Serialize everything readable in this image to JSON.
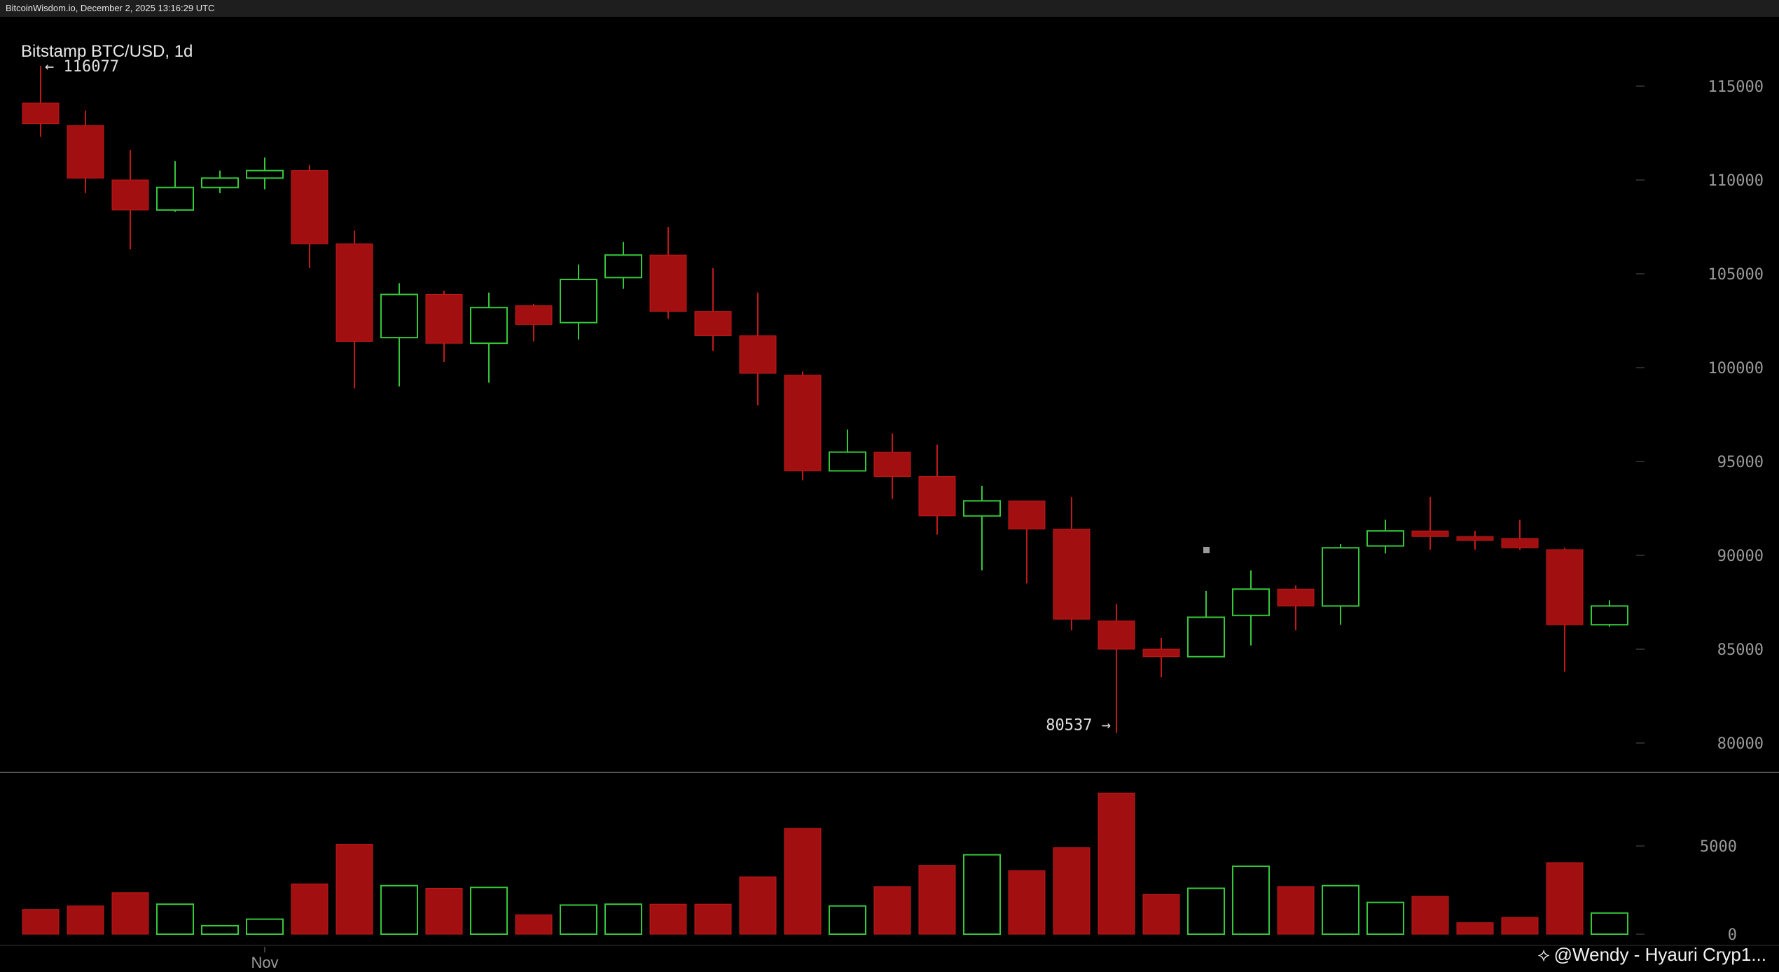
{
  "header": {
    "source_line": "BitcoinWisdom.io, December 2, 2025 13:16:29 UTC"
  },
  "watermark": {
    "text": "@Wendy - Hyauri Cryp1...",
    "icon": "binance-diamond-icon"
  },
  "colors": {
    "up": "#35c83a",
    "down": "#a10f10",
    "down_edge": "#c1191a",
    "axis_text": "#9a9a9a",
    "label_text": "#e0e0e0",
    "divider": "#555555"
  },
  "chart_data": {
    "type": "candlestick",
    "title": "Bitstamp BTC/USD, 1d",
    "price_axis": {
      "ylim": [
        77500,
        117500
      ],
      "ticks": [
        115000,
        110000,
        105000,
        100000,
        95000,
        90000,
        85000,
        80000
      ],
      "tick_labels": [
        "115000",
        "110000",
        "105000",
        "100000",
        "95000",
        "90000",
        "85000",
        "80000"
      ]
    },
    "volume_axis": {
      "ylim": [
        0,
        8200
      ],
      "ticks": [
        5000,
        0
      ],
      "tick_labels": [
        "5000",
        "0"
      ]
    },
    "x_labels": [
      {
        "index": 5,
        "label": "Nov"
      }
    ],
    "annotations": {
      "high": {
        "index": 0,
        "value": 116077,
        "text": "← 116077"
      },
      "low": {
        "index": 24,
        "value": 80537,
        "text": "80537 →"
      }
    },
    "candles": [
      {
        "o": 114100,
        "h": 116077,
        "l": 112300,
        "c": 113000,
        "v": 1400
      },
      {
        "o": 112900,
        "h": 113700,
        "l": 109300,
        "c": 110100,
        "v": 1600
      },
      {
        "o": 110000,
        "h": 111600,
        "l": 106300,
        "c": 108400,
        "v": 2350
      },
      {
        "o": 108400,
        "h": 111000,
        "l": 108300,
        "c": 109600,
        "v": 1700
      },
      {
        "o": 109600,
        "h": 110500,
        "l": 109300,
        "c": 110100,
        "v": 480
      },
      {
        "o": 110100,
        "h": 111200,
        "l": 109500,
        "c": 110500,
        "v": 850
      },
      {
        "o": 110500,
        "h": 110800,
        "l": 105300,
        "c": 106600,
        "v": 2850
      },
      {
        "o": 106600,
        "h": 107300,
        "l": 98900,
        "c": 101400,
        "v": 5100
      },
      {
        "o": 101600,
        "h": 104500,
        "l": 99000,
        "c": 103900,
        "v": 2750
      },
      {
        "o": 103900,
        "h": 104100,
        "l": 100300,
        "c": 101300,
        "v": 2600
      },
      {
        "o": 101300,
        "h": 104000,
        "l": 99200,
        "c": 103200,
        "v": 2650
      },
      {
        "o": 103300,
        "h": 103400,
        "l": 101400,
        "c": 102300,
        "v": 1100
      },
      {
        "o": 102400,
        "h": 105500,
        "l": 101500,
        "c": 104700,
        "v": 1650
      },
      {
        "o": 104800,
        "h": 106700,
        "l": 104200,
        "c": 106000,
        "v": 1700
      },
      {
        "o": 106000,
        "h": 107500,
        "l": 102600,
        "c": 103000,
        "v": 1700
      },
      {
        "o": 103000,
        "h": 105300,
        "l": 100900,
        "c": 101700,
        "v": 1700
      },
      {
        "o": 101700,
        "h": 104000,
        "l": 98000,
        "c": 99700,
        "v": 3250
      },
      {
        "o": 99600,
        "h": 99800,
        "l": 94000,
        "c": 94500,
        "v": 6000
      },
      {
        "o": 94500,
        "h": 96700,
        "l": 94500,
        "c": 95500,
        "v": 1600
      },
      {
        "o": 95500,
        "h": 96500,
        "l": 93000,
        "c": 94200,
        "v": 2700
      },
      {
        "o": 94200,
        "h": 95900,
        "l": 91100,
        "c": 92100,
        "v": 3900
      },
      {
        "o": 92100,
        "h": 93700,
        "l": 89200,
        "c": 92900,
        "v": 4500
      },
      {
        "o": 92900,
        "h": 92900,
        "l": 88500,
        "c": 91400,
        "v": 3600
      },
      {
        "o": 91400,
        "h": 93100,
        "l": 86000,
        "c": 86600,
        "v": 4900
      },
      {
        "o": 86500,
        "h": 87400,
        "l": 80537,
        "c": 85000,
        "v": 8000
      },
      {
        "o": 85000,
        "h": 85600,
        "l": 83500,
        "c": 84600,
        "v": 2250
      },
      {
        "o": 84600,
        "h": 88100,
        "l": 84600,
        "c": 86700,
        "v": 2600
      },
      {
        "o": 86800,
        "h": 89200,
        "l": 85200,
        "c": 88200,
        "v": 3850
      },
      {
        "o": 88200,
        "h": 88400,
        "l": 86000,
        "c": 87300,
        "v": 2700
      },
      {
        "o": 87300,
        "h": 90600,
        "l": 86300,
        "c": 90400,
        "v": 2750
      },
      {
        "o": 90500,
        "h": 91900,
        "l": 90100,
        "c": 91300,
        "v": 1800
      },
      {
        "o": 91300,
        "h": 93100,
        "l": 90300,
        "c": 91000,
        "v": 2150
      },
      {
        "o": 91000,
        "h": 91300,
        "l": 90300,
        "c": 90800,
        "v": 650
      },
      {
        "o": 90900,
        "h": 91900,
        "l": 90300,
        "c": 90400,
        "v": 950
      },
      {
        "o": 90300,
        "h": 90400,
        "l": 83800,
        "c": 86300,
        "v": 4050
      },
      {
        "o": 86300,
        "h": 87600,
        "l": 86200,
        "c": 87300,
        "v": 1200
      }
    ]
  }
}
